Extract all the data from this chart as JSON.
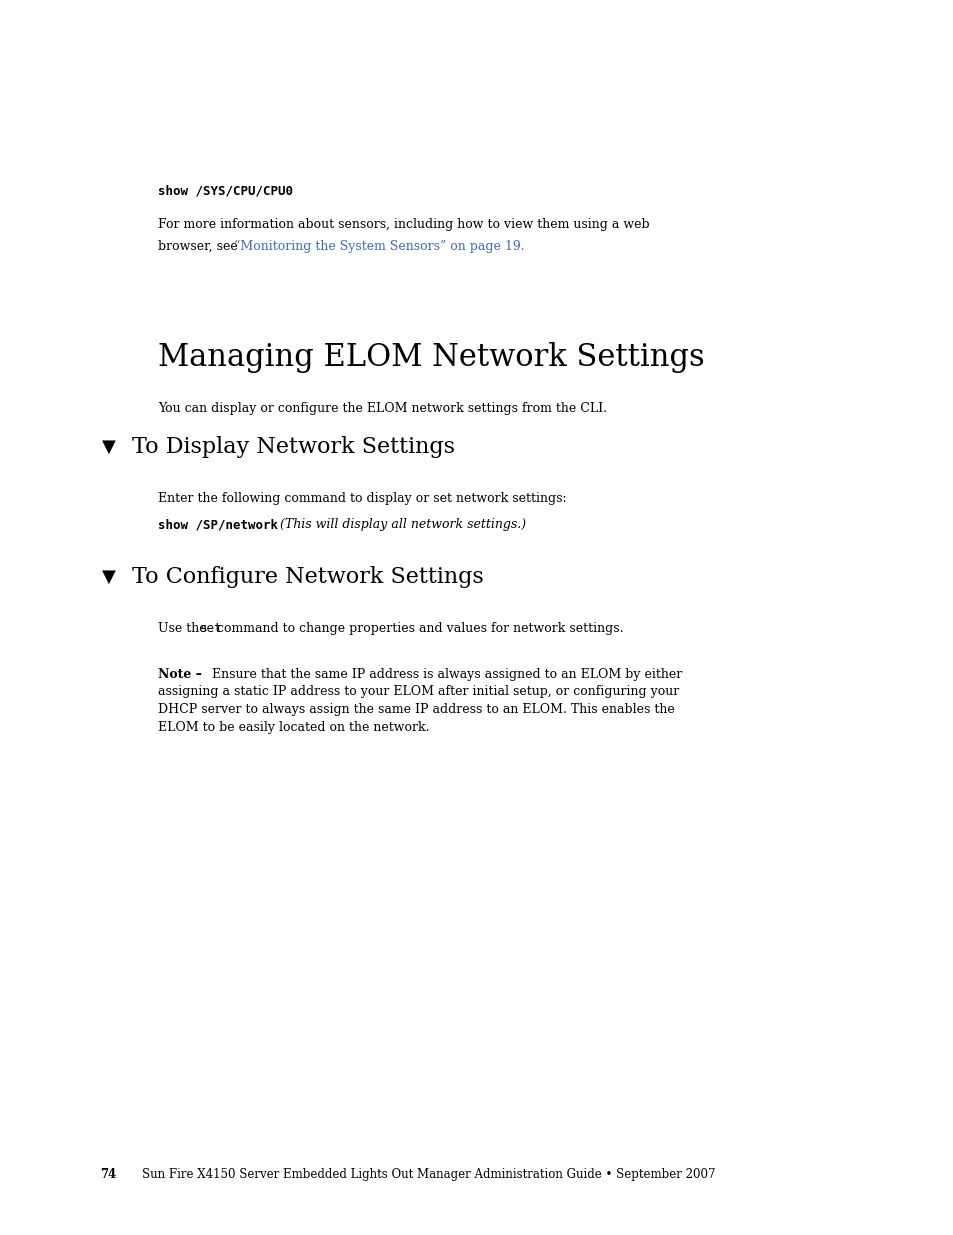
{
  "bg_color": "#ffffff",
  "page_width": 9.54,
  "page_height": 12.35,
  "code_line1": "show /SYS/CPU/CPU0",
  "body_line1": "For more information about sensors, including how to view them using a web",
  "body_line2_prefix": "browser, see ",
  "body_link": "“Monitoring the System Sensors” on page 19.",
  "link_color": "#4169bb",
  "chapter_title": "Managing ELOM Network Settings",
  "chapter_subtitle": "You can display or configure the ELOM network settings from the CLI.",
  "section1_marker": "▼",
  "section1_title": "To Display Network Settings",
  "section1_body1": "Enter the following command to display or set network settings:",
  "section1_code": "show /SP/network",
  "section1_italic": "  (This will display all network settings.)",
  "section2_marker": "▼",
  "section2_title": "To Configure Network Settings",
  "section2_body1_pre": "Use the ",
  "section2_code_inline": "set",
  "section2_body1_post": " command to change properties and values for network settings.",
  "note_bold": "Note –",
  "note_line1": " Ensure that the same IP address is always assigned to an ELOM by either",
  "note_line2": "assigning a static IP address to your ELOM after initial setup, or configuring your",
  "note_line3": "DHCP server to always assign the same IP address to an ELOM. This enables the",
  "note_line4": "ELOM to be easily located on the network.",
  "footer_page": "74",
  "footer_text": "Sun Fire X4150 Server Embedded Lights Out Manager Administration Guide • September 2007"
}
